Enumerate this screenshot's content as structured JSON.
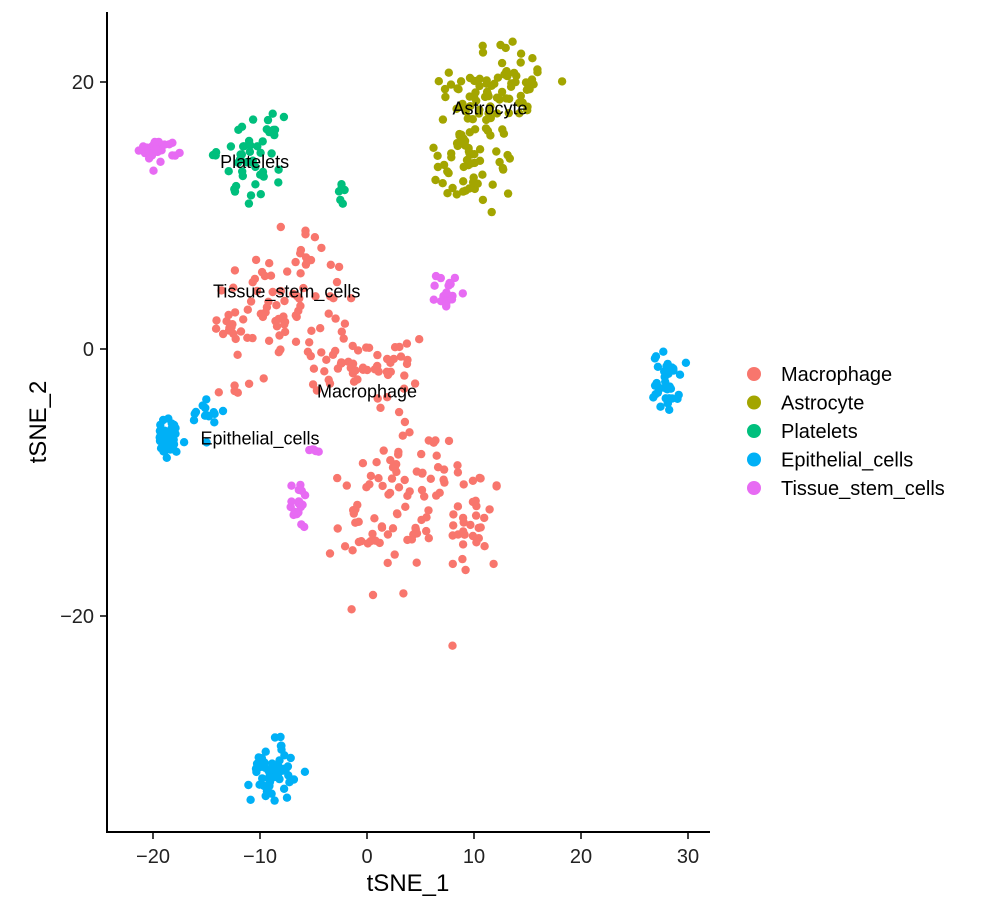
{
  "chart_data": {
    "type": "scatter",
    "xlabel": "tSNE_1",
    "ylabel": "tSNE_2",
    "xlim": [
      -24,
      32
    ],
    "ylim": [
      -36,
      25.5
    ],
    "x_ticks": [
      -20,
      -10,
      0,
      10,
      20,
      30
    ],
    "x_tick_labels": [
      "−20",
      "−10",
      "0",
      "10",
      "20",
      "30"
    ],
    "y_ticks": [
      20,
      0,
      -20
    ],
    "y_tick_labels": [
      "20",
      "0",
      "−20"
    ],
    "grid": false,
    "legend_position": "right",
    "clusters": [
      {
        "name": "Macrophage",
        "color": "#F8766D",
        "regions": [
          {
            "cx": -9,
            "cy": 3.5,
            "sx": 2.5,
            "sy": 2.2,
            "n": 45
          },
          {
            "cx": -4,
            "cy": 2.5,
            "sx": 2.0,
            "sy": 3.0,
            "n": 30
          },
          {
            "cx": -13,
            "cy": 1.8,
            "sx": 1.0,
            "sy": 0.6,
            "n": 12
          },
          {
            "cx": -6,
            "cy": 8,
            "sx": 0.8,
            "sy": 1.0,
            "n": 6
          },
          {
            "cx": -2,
            "cy": -1,
            "sx": 2.5,
            "sy": 1.2,
            "n": 25
          },
          {
            "cx": 2,
            "cy": -2,
            "sx": 2.0,
            "sy": 2.0,
            "n": 25
          },
          {
            "cx": 5,
            "cy": -9,
            "sx": 2.5,
            "sy": 1.5,
            "n": 30
          },
          {
            "cx": 10,
            "cy": -13,
            "sx": 1.3,
            "sy": 2.2,
            "n": 35
          },
          {
            "cx": 2,
            "cy": -13,
            "sx": 2.2,
            "sy": 2.8,
            "n": 45
          },
          {
            "cx": -1,
            "cy": -13,
            "sx": 1.0,
            "sy": 1.5,
            "n": 12
          },
          {
            "cx": -12,
            "cy": -3,
            "sx": 1.5,
            "sy": 0.8,
            "n": 6
          }
        ]
      },
      {
        "name": "Astrocyte",
        "color": "#A3A500",
        "regions": [
          {
            "cx": 13,
            "cy": 20,
            "sx": 2.5,
            "sy": 1.5,
            "n": 60
          },
          {
            "cx": 10,
            "cy": 16,
            "sx": 1.8,
            "sy": 2.0,
            "n": 55
          },
          {
            "cx": 9,
            "cy": 13,
            "sx": 1.5,
            "sy": 1.2,
            "n": 25
          }
        ]
      },
      {
        "name": "Platelets",
        "color": "#00BF7D",
        "regions": [
          {
            "cx": -11,
            "cy": 15,
            "sx": 1.5,
            "sy": 1.2,
            "n": 35
          },
          {
            "cx": -10,
            "cy": 12.5,
            "sx": 1.0,
            "sy": 1.0,
            "n": 12
          },
          {
            "cx": -2.3,
            "cy": 11.5,
            "sx": 0.2,
            "sy": 0.4,
            "n": 6
          }
        ]
      },
      {
        "name": "Epithelial_cells",
        "color": "#00B0F6",
        "regions": [
          {
            "cx": -18.5,
            "cy": -6.8,
            "sx": 0.8,
            "sy": 0.8,
            "n": 35
          },
          {
            "cx": -15,
            "cy": -4.8,
            "sx": 0.8,
            "sy": 0.8,
            "n": 14
          },
          {
            "cx": 28,
            "cy": -2.5,
            "sx": 0.6,
            "sy": 1.1,
            "n": 40
          },
          {
            "cx": -8.8,
            "cy": -31.5,
            "sx": 1.0,
            "sy": 1.2,
            "n": 50
          }
        ]
      },
      {
        "name": "Tissue_stem_cells",
        "color": "#E76BF3",
        "regions": [
          {
            "cx": -19.5,
            "cy": 14.9,
            "sx": 0.9,
            "sy": 0.4,
            "n": 28
          },
          {
            "cx": 7.5,
            "cy": 4.3,
            "sx": 0.5,
            "sy": 0.7,
            "n": 18
          },
          {
            "cx": -6.3,
            "cy": -11.6,
            "sx": 0.4,
            "sy": 0.9,
            "n": 18
          },
          {
            "cx": -5.5,
            "cy": -7.7,
            "sx": 0.4,
            "sy": 0.1,
            "n": 5
          }
        ]
      }
    ],
    "annotations": [
      {
        "text": "Astrocyte",
        "x": 11.5,
        "y": 18
      },
      {
        "text": "Platelets",
        "x": -10.5,
        "y": 14
      },
      {
        "text": "Tissue_stem_cells",
        "x": -7.5,
        "y": 4.3
      },
      {
        "text": "Macrophage",
        "x": 0,
        "y": -3.2
      },
      {
        "text": "Epithelial_cells",
        "x": -10,
        "y": -6.7
      }
    ],
    "legend": [
      {
        "label": "Macrophage",
        "color": "#F8766D"
      },
      {
        "label": "Astrocyte",
        "color": "#A3A500"
      },
      {
        "label": "Platelets",
        "color": "#00BF7D"
      },
      {
        "label": "Epithelial_cells",
        "color": "#00B0F6"
      },
      {
        "label": "Tissue_stem_cells",
        "color": "#E76BF3"
      }
    ]
  }
}
